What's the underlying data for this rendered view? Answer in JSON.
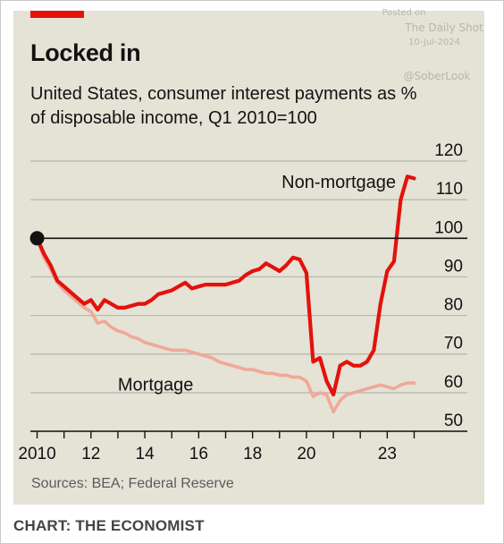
{
  "header": {
    "title": "Locked in",
    "subtitle": "United States, consumer interest payments as % of disposable income, Q1 2010=100"
  },
  "watermark": {
    "posted": "Posted on",
    "source": "The Daily Shot",
    "date": "10-Jul-2024",
    "handle": "@SoberLook"
  },
  "footer": {
    "sources": "Sources: BEA; Federal Reserve",
    "credit": "CHART: THE ECONOMIST"
  },
  "colors": {
    "background": "#e5e2d6",
    "non_mortgage": "#e3120b",
    "mortgage": "#f0a898",
    "gridline": "#b7b5ab",
    "reference_line": "#121212",
    "accent_bar": "#e3120b"
  },
  "chart_data": {
    "type": "line",
    "title": "Locked in",
    "subtitle": "United States, consumer interest payments as % of disposable income, Q1 2010=100",
    "xlabel": "",
    "ylabel": "",
    "xlim": [
      2009.75,
      2024.25
    ],
    "ylim": [
      50,
      120
    ],
    "y_ticks": [
      50,
      60,
      70,
      80,
      90,
      100,
      110,
      120
    ],
    "x_ticks": [
      {
        "value": 2010,
        "label": "2010"
      },
      {
        "value": 2012,
        "label": "12"
      },
      {
        "value": 2014,
        "label": "14"
      },
      {
        "value": 2016,
        "label": "16"
      },
      {
        "value": 2018,
        "label": "18"
      },
      {
        "value": 2020,
        "label": "20"
      },
      {
        "value": 2023,
        "label": "23"
      }
    ],
    "grid": true,
    "y_axis_side": "right",
    "reference_line": 100,
    "start_marker": {
      "x": 2010.0,
      "y": 100
    },
    "series": [
      {
        "name": "Non-mortgage",
        "color": "#e3120b",
        "points": [
          [
            2010.0,
            100
          ],
          [
            2010.25,
            96
          ],
          [
            2010.5,
            93
          ],
          [
            2010.75,
            89
          ],
          [
            2011.0,
            87.5
          ],
          [
            2011.25,
            86
          ],
          [
            2011.5,
            84.5
          ],
          [
            2011.75,
            83
          ],
          [
            2012.0,
            84
          ],
          [
            2012.25,
            81.5
          ],
          [
            2012.5,
            84
          ],
          [
            2012.75,
            83
          ],
          [
            2013.0,
            82
          ],
          [
            2013.25,
            82
          ],
          [
            2013.5,
            82.5
          ],
          [
            2013.75,
            83
          ],
          [
            2014.0,
            83
          ],
          [
            2014.25,
            84
          ],
          [
            2014.5,
            85.5
          ],
          [
            2014.75,
            86
          ],
          [
            2015.0,
            86.5
          ],
          [
            2015.25,
            87.5
          ],
          [
            2015.5,
            88.5
          ],
          [
            2015.75,
            87
          ],
          [
            2016.0,
            87.5
          ],
          [
            2016.25,
            88
          ],
          [
            2016.5,
            88
          ],
          [
            2016.75,
            88
          ],
          [
            2017.0,
            88
          ],
          [
            2017.25,
            88.5
          ],
          [
            2017.5,
            89
          ],
          [
            2017.75,
            90.5
          ],
          [
            2018.0,
            91.5
          ],
          [
            2018.25,
            92
          ],
          [
            2018.5,
            93.5
          ],
          [
            2018.75,
            92.5
          ],
          [
            2019.0,
            91.5
          ],
          [
            2019.25,
            93
          ],
          [
            2019.5,
            95
          ],
          [
            2019.75,
            94.5
          ],
          [
            2020.0,
            91
          ],
          [
            2020.25,
            68
          ],
          [
            2020.5,
            69
          ],
          [
            2020.75,
            63
          ],
          [
            2021.0,
            59.5
          ],
          [
            2021.25,
            67
          ],
          [
            2021.5,
            68
          ],
          [
            2021.75,
            67
          ],
          [
            2022.0,
            67
          ],
          [
            2022.25,
            68
          ],
          [
            2022.5,
            71
          ],
          [
            2022.75,
            83
          ],
          [
            2023.0,
            91.5
          ],
          [
            2023.25,
            94
          ],
          [
            2023.5,
            110
          ],
          [
            2023.75,
            116
          ],
          [
            2024.0,
            115.5
          ]
        ]
      },
      {
        "name": "Mortgage",
        "color": "#f0a898",
        "points": [
          [
            2010.0,
            100
          ],
          [
            2010.25,
            95
          ],
          [
            2010.5,
            92
          ],
          [
            2010.75,
            88.5
          ],
          [
            2011.0,
            86.5
          ],
          [
            2011.25,
            85
          ],
          [
            2011.5,
            83.5
          ],
          [
            2011.75,
            82
          ],
          [
            2012.0,
            81
          ],
          [
            2012.25,
            78
          ],
          [
            2012.5,
            78.5
          ],
          [
            2012.75,
            77
          ],
          [
            2013.0,
            76
          ],
          [
            2013.25,
            75.5
          ],
          [
            2013.5,
            74.5
          ],
          [
            2013.75,
            74
          ],
          [
            2014.0,
            73
          ],
          [
            2014.25,
            72.5
          ],
          [
            2014.5,
            72
          ],
          [
            2014.75,
            71.5
          ],
          [
            2015.0,
            71
          ],
          [
            2015.25,
            71
          ],
          [
            2015.5,
            71
          ],
          [
            2015.75,
            70.5
          ],
          [
            2016.0,
            70
          ],
          [
            2016.25,
            69.5
          ],
          [
            2016.5,
            69
          ],
          [
            2016.75,
            68
          ],
          [
            2017.0,
            67.5
          ],
          [
            2017.25,
            67
          ],
          [
            2017.5,
            66.5
          ],
          [
            2017.75,
            66
          ],
          [
            2018.0,
            66
          ],
          [
            2018.25,
            65.5
          ],
          [
            2018.5,
            65
          ],
          [
            2018.75,
            65
          ],
          [
            2019.0,
            64.5
          ],
          [
            2019.25,
            64.5
          ],
          [
            2019.5,
            64
          ],
          [
            2019.75,
            64
          ],
          [
            2020.0,
            63
          ],
          [
            2020.25,
            59
          ],
          [
            2020.5,
            60
          ],
          [
            2020.75,
            59.5
          ],
          [
            2021.0,
            55
          ],
          [
            2021.25,
            58
          ],
          [
            2021.5,
            59.5
          ],
          [
            2021.75,
            60
          ],
          [
            2022.0,
            60.5
          ],
          [
            2022.25,
            61
          ],
          [
            2022.5,
            61.5
          ],
          [
            2022.75,
            62
          ],
          [
            2023.0,
            61.5
          ],
          [
            2023.25,
            61
          ],
          [
            2023.5,
            62
          ],
          [
            2023.75,
            62.5
          ],
          [
            2024.0,
            62.5
          ]
        ]
      }
    ],
    "annotations": [
      {
        "text": "Non-mortgage",
        "series": "Non-mortgage"
      },
      {
        "text": "Mortgage",
        "series": "Mortgage"
      }
    ]
  }
}
